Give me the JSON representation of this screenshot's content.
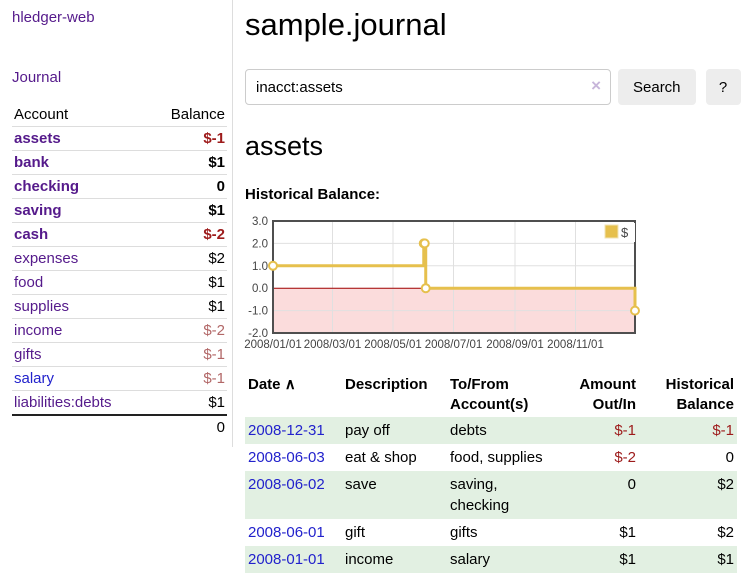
{
  "colors": {
    "link_purple": "#551a8b",
    "link_blue": "#2222cc",
    "negative_strong": "#9d1b1b",
    "negative_muted": "#b26767",
    "row_stripe_green": "#e2f0e2",
    "chart_line_gold": "#e6c04d",
    "chart_negative_pink": "#fbdcdc",
    "chart_zero_line_red": "#a00000",
    "chart_grid": "#e0e0e0",
    "chart_border": "#4f4f4f"
  },
  "navbar": {
    "brand": "hledger-web"
  },
  "sidebar": {
    "journal_link": "Journal",
    "table": {
      "account_header": "Account",
      "balance_header": "Balance",
      "rows": [
        {
          "name": "assets",
          "balance": "$-1",
          "indent": 1,
          "bold": true,
          "link": "purple",
          "balance_style": "neg-strong"
        },
        {
          "name": "bank",
          "balance": "$1",
          "indent": 2,
          "bold": true,
          "link": "purple",
          "balance_style": "strong"
        },
        {
          "name": "checking",
          "balance": "0",
          "indent": 3,
          "bold": true,
          "link": "purple",
          "balance_style": "strong"
        },
        {
          "name": "saving",
          "balance": "$1",
          "indent": 3,
          "bold": true,
          "link": "purple",
          "balance_style": "strong"
        },
        {
          "name": "cash",
          "balance": "$-2",
          "indent": 2,
          "bold": true,
          "link": "purple",
          "balance_style": "neg-strong"
        },
        {
          "name": "expenses",
          "balance": "$2",
          "indent": 1,
          "bold": false,
          "link": "purple",
          "balance_style": "plain"
        },
        {
          "name": "food",
          "balance": "$1",
          "indent": 2,
          "bold": false,
          "link": "purple",
          "balance_style": "plain"
        },
        {
          "name": "supplies",
          "balance": "$1",
          "indent": 2,
          "bold": false,
          "link": "purple",
          "balance_style": "plain"
        },
        {
          "name": "income",
          "balance": "$-2",
          "indent": 1,
          "bold": false,
          "link": "purple",
          "balance_style": "neg-muted"
        },
        {
          "name": "gifts",
          "balance": "$-1",
          "indent": 2,
          "bold": false,
          "link": "purple",
          "balance_style": "neg-muted"
        },
        {
          "name": "salary",
          "balance": "$-1",
          "indent": 2,
          "bold": false,
          "link": "blue",
          "balance_style": "neg-muted"
        },
        {
          "name": "liabilities:debts",
          "balance": "$1",
          "indent": 1,
          "bold": false,
          "link": "purple",
          "balance_style": "plain"
        }
      ],
      "total": "0"
    }
  },
  "main": {
    "title": "sample.journal",
    "search": {
      "value": "inacct:assets",
      "clear_icon": "×",
      "search_button": "Search",
      "help_button": "?"
    },
    "account_heading": "assets",
    "chart_heading": "Historical Balance:"
  },
  "chart_data": {
    "type": "line",
    "step": true,
    "title": "Historical Balance",
    "series": [
      {
        "name": "$",
        "color": "#e6c04d",
        "x": [
          "2008-01-01",
          "2008-06-01",
          "2008-06-02",
          "2008-06-03",
          "2008-12-31"
        ],
        "values": [
          1,
          2,
          2,
          0,
          -1
        ]
      }
    ],
    "x_range": [
      "2008-01-01",
      "2008-12-31"
    ],
    "x_ticks": [
      {
        "date": "2008-01-01",
        "label": "2008/01/01"
      },
      {
        "date": "2008-03-01",
        "label": "2008/03/01"
      },
      {
        "date": "2008-05-01",
        "label": "2008/05/01"
      },
      {
        "date": "2008-07-01",
        "label": "2008/07/01"
      },
      {
        "date": "2008-09-01",
        "label": "2008/09/01"
      },
      {
        "date": "2008-11-01",
        "label": "2008/11/01"
      }
    ],
    "y_ticks": [
      "3.0",
      "2.0",
      "1.0",
      "0.0",
      "-1.0",
      "-2.0"
    ],
    "ylim": [
      -2,
      3
    ],
    "grid": true,
    "negative_region_shaded": true,
    "legend": {
      "label": "$",
      "position": "top-right"
    }
  },
  "register": {
    "headers": {
      "date": "Date",
      "sort_icon": "∧",
      "description": "Description",
      "accounts": "To/From Account(s)",
      "amount": "Amount Out/In",
      "balance": "Historical Balance"
    },
    "rows": [
      {
        "date": "2008-12-31",
        "description": "pay off",
        "accounts": "debts",
        "amount": "$-1",
        "amount_negative": true,
        "balance": "$-1",
        "balance_negative": true
      },
      {
        "date": "2008-06-03",
        "description": "eat & shop",
        "accounts": "food, supplies",
        "amount": "$-2",
        "amount_negative": true,
        "balance": "0",
        "balance_negative": false
      },
      {
        "date": "2008-06-02",
        "description": "save",
        "accounts": "saving, checking",
        "amount": "0",
        "amount_negative": false,
        "balance": "$2",
        "balance_negative": false
      },
      {
        "date": "2008-06-01",
        "description": "gift",
        "accounts": "gifts",
        "amount": "$1",
        "amount_negative": false,
        "balance": "$2",
        "balance_negative": false
      },
      {
        "date": "2008-01-01",
        "description": "income",
        "accounts": "salary",
        "amount": "$1",
        "amount_negative": false,
        "balance": "$1",
        "balance_negative": false
      }
    ]
  }
}
